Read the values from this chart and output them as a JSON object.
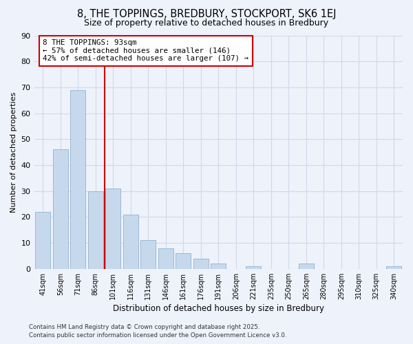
{
  "title": "8, THE TOPPINGS, BREDBURY, STOCKPORT, SK6 1EJ",
  "subtitle": "Size of property relative to detached houses in Bredbury",
  "xlabel": "Distribution of detached houses by size in Bredbury",
  "ylabel": "Number of detached properties",
  "bar_color": "#c6d9ec",
  "bar_edge_color": "#9ab8d4",
  "background_color": "#eef2fb",
  "grid_color": "#d0d8e8",
  "categories": [
    "41sqm",
    "56sqm",
    "71sqm",
    "86sqm",
    "101sqm",
    "116sqm",
    "131sqm",
    "146sqm",
    "161sqm",
    "176sqm",
    "191sqm",
    "206sqm",
    "221sqm",
    "235sqm",
    "250sqm",
    "265sqm",
    "280sqm",
    "295sqm",
    "310sqm",
    "325sqm",
    "340sqm"
  ],
  "values": [
    22,
    46,
    69,
    30,
    31,
    21,
    11,
    8,
    6,
    4,
    2,
    0,
    1,
    0,
    0,
    2,
    0,
    0,
    0,
    0,
    1
  ],
  "ylim": [
    0,
    90
  ],
  "yticks": [
    0,
    10,
    20,
    30,
    40,
    50,
    60,
    70,
    80,
    90
  ],
  "vline_x": 3.5,
  "vline_color": "#cc0000",
  "annotation_title": "8 THE TOPPINGS: 93sqm",
  "annotation_line1": "← 57% of detached houses are smaller (146)",
  "annotation_line2": "42% of semi-detached houses are larger (107) →",
  "annotation_box_color": "white",
  "annotation_box_edge": "#cc0000",
  "footer_line1": "Contains HM Land Registry data © Crown copyright and database right 2025.",
  "footer_line2": "Contains public sector information licensed under the Open Government Licence v3.0."
}
